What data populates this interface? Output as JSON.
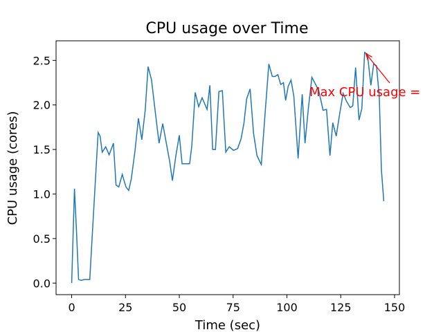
{
  "chart_data": {
    "type": "line",
    "title": "CPU usage over Time",
    "xlabel": "Time (sec)",
    "ylabel": "CPU usage (cores)",
    "x": [
      0,
      1.3,
      2.3,
      3.2,
      4.5,
      5.8,
      8.4,
      10.3,
      12.3,
      13.2,
      14.2,
      15.8,
      17.4,
      19.4,
      20.6,
      21.9,
      23.5,
      25.2,
      26.5,
      27.7,
      29.4,
      31.0,
      32.6,
      34.2,
      35.5,
      37.1,
      38.7,
      40.6,
      42.3,
      43.9,
      45.5,
      46.8,
      48.4,
      50.0,
      51.3,
      52.9,
      54.8,
      55.8,
      57.4,
      59.0,
      60.6,
      62.9,
      64.2,
      65.5,
      66.8,
      68.4,
      70.0,
      71.6,
      73.2,
      75.2,
      77.1,
      78.7,
      80.0,
      81.3,
      82.9,
      84.5,
      86.1,
      88.1,
      90.0,
      91.6,
      93.2,
      94.5,
      95.8,
      97.1,
      98.4,
      99.4,
      100.6,
      101.9,
      103.2,
      105.2,
      107.1,
      108.4,
      110.0,
      111.6,
      112.9,
      114.8,
      116.8,
      118.4,
      120.0,
      121.3,
      122.9,
      124.5,
      126.1,
      127.7,
      129.4,
      130.6,
      131.9,
      133.5,
      134.8,
      136.1,
      137.4,
      139.0,
      140.3,
      141.6,
      142.9,
      143.9,
      145
    ],
    "series": [
      {
        "name": "CPU usage",
        "color": "#1f77b4",
        "values": [
          0.0,
          1.06,
          0.55,
          0.04,
          0.03,
          0.04,
          0.04,
          0.85,
          1.69,
          1.65,
          1.47,
          1.53,
          1.44,
          1.57,
          1.1,
          1.08,
          1.22,
          1.08,
          1.04,
          1.17,
          1.48,
          1.85,
          1.61,
          1.95,
          2.43,
          2.28,
          1.95,
          1.57,
          1.79,
          1.58,
          1.37,
          1.15,
          1.43,
          1.66,
          1.34,
          1.34,
          1.34,
          1.54,
          2.14,
          1.98,
          2.08,
          1.95,
          2.22,
          1.5,
          1.5,
          2.15,
          2.16,
          1.47,
          1.53,
          1.49,
          1.51,
          1.62,
          1.79,
          2.07,
          2.18,
          1.68,
          1.43,
          1.33,
          1.95,
          2.46,
          2.32,
          2.32,
          2.34,
          2.23,
          2.25,
          2.05,
          2.21,
          2.28,
          2.1,
          1.4,
          2.12,
          1.57,
          1.97,
          2.31,
          2.25,
          2.16,
          1.94,
          1.95,
          1.43,
          1.8,
          1.65,
          1.9,
          2.13,
          2.04,
          1.97,
          1.99,
          2.42,
          1.83,
          1.96,
          2.59,
          2.57,
          2.22,
          2.46,
          2.44,
          2.1,
          1.27,
          0.92
        ]
      }
    ],
    "xlim": [
      -7.25,
      152.25
    ],
    "xticks": [
      0,
      25,
      50,
      75,
      100,
      125,
      150
    ],
    "ylim": [
      -0.13,
      2.72
    ],
    "yticks": [
      {
        "value": 0,
        "label": "0.0"
      },
      {
        "value": 0.5,
        "label": "0.5"
      },
      {
        "value": 1,
        "label": "1.0"
      },
      {
        "value": 1.5,
        "label": "1.5"
      },
      {
        "value": 2,
        "label": "2.0"
      },
      {
        "value": 2.5,
        "label": "2.5"
      }
    ],
    "annotation": {
      "text": "Max CPU usage =",
      "color": "red"
    }
  }
}
